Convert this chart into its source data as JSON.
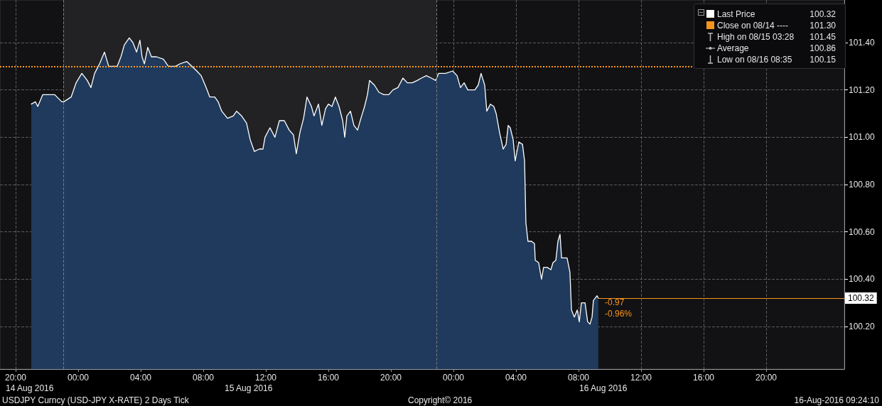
{
  "chart_data": {
    "type": "area",
    "x": [
      "2016-08-14T21:00",
      "2016-08-14T21:16",
      "2016-08-14T21:25",
      "2016-08-14T21:44",
      "2016-08-14T22:30",
      "2016-08-14T22:57",
      "2016-08-14T23:05",
      "2016-08-14T23:33",
      "2016-08-14T23:52",
      "2016-08-15T00:14",
      "2016-08-15T00:35",
      "2016-08-15T00:49",
      "2016-08-15T01:03",
      "2016-08-15T01:22",
      "2016-08-15T01:41",
      "2016-08-15T01:57",
      "2016-08-15T02:30",
      "2016-08-15T02:44",
      "2016-08-15T02:57",
      "2016-08-15T03:16",
      "2016-08-15T03:30",
      "2016-08-15T03:44",
      "2016-08-15T03:57",
      "2016-08-15T04:05",
      "2016-08-15T04:14",
      "2016-08-15T04:27",
      "2016-08-15T04:41",
      "2016-08-15T05:00",
      "2016-08-15T05:27",
      "2016-08-15T05:46",
      "2016-08-15T06:14",
      "2016-08-15T06:30",
      "2016-08-15T06:57",
      "2016-08-15T07:16",
      "2016-08-15T07:35",
      "2016-08-15T07:52",
      "2016-08-15T08:11",
      "2016-08-15T08:25",
      "2016-08-15T08:44",
      "2016-08-15T08:57",
      "2016-08-15T09:11",
      "2016-08-15T09:33",
      "2016-08-15T09:55",
      "2016-08-15T10:08",
      "2016-08-15T10:27",
      "2016-08-15T10:46",
      "2016-08-15T11:00",
      "2016-08-15T11:16",
      "2016-08-15T11:35",
      "2016-08-15T11:49",
      "2016-08-15T11:57",
      "2016-08-15T12:16",
      "2016-08-15T12:35",
      "2016-08-15T12:52",
      "2016-08-15T13:11",
      "2016-08-15T13:30",
      "2016-08-15T13:46",
      "2016-08-15T13:57",
      "2016-08-15T14:11",
      "2016-08-15T14:25",
      "2016-08-15T14:38",
      "2016-08-15T14:55",
      "2016-08-15T15:05",
      "2016-08-15T15:22",
      "2016-08-15T15:35",
      "2016-08-15T15:49",
      "2016-08-15T16:00",
      "2016-08-15T16:14",
      "2016-08-15T16:27",
      "2016-08-15T16:41",
      "2016-08-15T16:55",
      "2016-08-15T17:03",
      "2016-08-15T17:11",
      "2016-08-15T17:25",
      "2016-08-15T17:38",
      "2016-08-15T17:52",
      "2016-08-15T18:05",
      "2016-08-15T18:19",
      "2016-08-15T18:30",
      "2016-08-15T18:38",
      "2016-08-15T18:57",
      "2016-08-15T19:14",
      "2016-08-15T19:33",
      "2016-08-15T19:52",
      "2016-08-15T20:08",
      "2016-08-15T20:27",
      "2016-08-15T20:46",
      "2016-08-15T21:03",
      "2016-08-15T21:22",
      "2016-08-15T21:41",
      "2016-08-15T21:57",
      "2016-08-15T22:16",
      "2016-08-15T22:35",
      "2016-08-15T22:52",
      "2016-08-15T23:03",
      "2016-08-15T23:30",
      "2016-08-15T23:57",
      "2016-08-16T00:14",
      "2016-08-16T00:27",
      "2016-08-16T00:41",
      "2016-08-16T00:55",
      "2016-08-16T01:08",
      "2016-08-16T01:22",
      "2016-08-16T01:35",
      "2016-08-16T01:46",
      "2016-08-16T02:00",
      "2016-08-16T02:08",
      "2016-08-16T02:22",
      "2016-08-16T02:35",
      "2016-08-16T02:44",
      "2016-08-16T02:57",
      "2016-08-16T03:11",
      "2016-08-16T03:22",
      "2016-08-16T03:30",
      "2016-08-16T03:38",
      "2016-08-16T03:49",
      "2016-08-16T03:57",
      "2016-08-16T04:11",
      "2016-08-16T04:25",
      "2016-08-16T04:33",
      "2016-08-16T04:38",
      "2016-08-16T04:46",
      "2016-08-16T05:00",
      "2016-08-16T05:11",
      "2016-08-16T05:14",
      "2016-08-16T05:27",
      "2016-08-16T05:38",
      "2016-08-16T05:46",
      "2016-08-16T06:00",
      "2016-08-16T06:14",
      "2016-08-16T06:22",
      "2016-08-16T06:33",
      "2016-08-16T06:41",
      "2016-08-16T06:49",
      "2016-08-16T06:55",
      "2016-08-16T07:08",
      "2016-08-16T07:16",
      "2016-08-16T07:27",
      "2016-08-16T07:33",
      "2016-08-16T07:44",
      "2016-08-16T07:55",
      "2016-08-16T08:03",
      "2016-08-16T08:11",
      "2016-08-16T08:25",
      "2016-08-16T08:35",
      "2016-08-16T08:44",
      "2016-08-16T08:52",
      "2016-08-16T08:57",
      "2016-08-16T09:11",
      "2016-08-16T09:16"
    ],
    "series": [
      {
        "color": "#1f3a5c",
        "values": [
          101.14,
          101.15,
          101.13,
          101.18,
          101.18,
          101.15,
          101.15,
          101.17,
          101.23,
          101.27,
          101.24,
          101.21,
          101.27,
          101.31,
          101.36,
          101.3,
          101.3,
          101.34,
          101.39,
          101.42,
          101.4,
          101.36,
          101.41,
          101.34,
          101.31,
          101.38,
          101.34,
          101.34,
          101.33,
          101.3,
          101.3,
          101.31,
          101.32,
          101.3,
          101.28,
          101.26,
          101.21,
          101.17,
          101.17,
          101.15,
          101.11,
          101.08,
          101.09,
          101.11,
          101.09,
          101.06,
          100.99,
          100.94,
          100.95,
          100.95,
          101.0,
          101.04,
          101.0,
          101.07,
          101.07,
          101.03,
          101.01,
          100.93,
          101.02,
          101.08,
          101.17,
          101.13,
          101.09,
          101.14,
          101.05,
          101.12,
          101.14,
          101.13,
          101.17,
          101.13,
          101.07,
          101.0,
          101.09,
          101.11,
          101.05,
          101.03,
          101.08,
          101.13,
          101.18,
          101.24,
          101.22,
          101.19,
          101.18,
          101.18,
          101.2,
          101.21,
          101.25,
          101.23,
          101.23,
          101.24,
          101.25,
          101.26,
          101.25,
          101.24,
          101.27,
          101.27,
          101.28,
          101.26,
          101.21,
          101.23,
          101.2,
          101.2,
          101.2,
          101.22,
          101.27,
          101.22,
          101.11,
          101.14,
          101.13,
          101.1,
          101.02,
          100.95,
          100.97,
          101.05,
          101.04,
          100.99,
          100.9,
          100.98,
          100.97,
          100.9,
          100.64,
          100.56,
          100.56,
          100.55,
          100.48,
          100.47,
          100.4,
          100.45,
          100.45,
          100.44,
          100.47,
          100.48,
          100.56,
          100.59,
          100.49,
          100.49,
          100.49,
          100.43,
          100.27,
          100.24,
          100.27,
          100.22,
          100.3,
          100.3,
          100.22,
          100.21,
          100.24,
          100.31,
          100.33,
          100.32
        ]
      }
    ],
    "xlim": [
      "2016-08-14T19:00",
      "2016-08-17T01:00"
    ],
    "xticks": [
      {
        "value": "2016-08-14T20:00",
        "label": "20:00"
      },
      {
        "value": "2016-08-15T00:00",
        "label": "00:00"
      },
      {
        "value": "2016-08-15T04:00",
        "label": "04:00"
      },
      {
        "value": "2016-08-15T08:00",
        "label": "08:00"
      },
      {
        "value": "2016-08-15T12:00",
        "label": "12:00"
      },
      {
        "value": "2016-08-15T16:00",
        "label": "16:00"
      },
      {
        "value": "2016-08-15T20:00",
        "label": "20:00"
      },
      {
        "value": "2016-08-16T00:00",
        "label": "00:00"
      },
      {
        "value": "2016-08-16T04:00",
        "label": "04:00"
      },
      {
        "value": "2016-08-16T08:00",
        "label": "08:00"
      },
      {
        "value": "2016-08-16T12:00",
        "label": "12:00"
      },
      {
        "value": "2016-08-16T16:00",
        "label": "16:00"
      },
      {
        "value": "2016-08-16T20:00",
        "label": "20:00"
      }
    ],
    "ylim": [
      100.02,
      101.58
    ],
    "yticks": [
      {
        "value": 100.2,
        "label": "100.20"
      },
      {
        "value": 100.4,
        "label": "100.40"
      },
      {
        "value": 100.6,
        "label": "100.60"
      },
      {
        "value": 100.8,
        "label": "100.80"
      },
      {
        "value": 101.0,
        "label": "101.00"
      },
      {
        "value": 101.2,
        "label": "101.20"
      },
      {
        "value": 101.4,
        "label": "101.40"
      }
    ],
    "grid": true,
    "ref_lines": [
      {
        "axis": "y",
        "value": 101.3,
        "color": "#f7941d",
        "line_style": "dotted"
      },
      {
        "axis": "y",
        "value": 100.32,
        "label": "100.32",
        "color": "#f7941d",
        "line_style": "solid"
      },
      {
        "axis": "x",
        "value": "2016-08-14T23:03",
        "color": "#7a7a7a",
        "line_style": "dashed"
      },
      {
        "axis": "x",
        "value": "2016-08-15T22:54",
        "color": "#7a7a7a",
        "line_style": "dashed"
      }
    ],
    "bands": [
      {
        "axis": "x",
        "from": "2016-08-14T23:03",
        "to": "2016-08-15T22:54",
        "color": "#222224"
      }
    ],
    "annotations": [
      "Last Price",
      "100.32",
      "Close on 08/14 ----",
      "101.30",
      "High on 08/15 03:28",
      "101.45",
      "Average",
      "100.86",
      "Low on 08/16 08:35",
      "100.15",
      "-0.97",
      "-0.96%",
      "14 Aug 2016",
      "15 Aug 2016",
      "16 Aug 2016",
      "USDJPY Curncy (USD-JPY X-RATE) 2 Days  Tick",
      "Copyright© 2016",
      "16-Aug-2016 09:24:10"
    ]
  }
}
